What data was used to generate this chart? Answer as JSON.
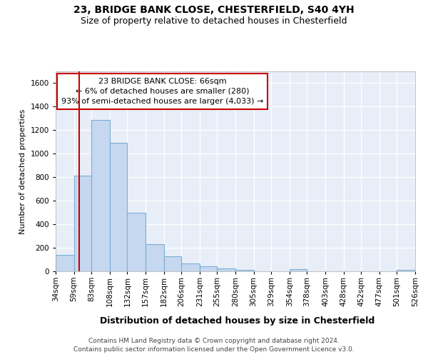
{
  "title": "23, BRIDGE BANK CLOSE, CHESTERFIELD, S40 4YH",
  "subtitle": "Size of property relative to detached houses in Chesterfield",
  "xlabel": "Distribution of detached houses by size in Chesterfield",
  "ylabel": "Number of detached properties",
  "footnote1": "Contains HM Land Registry data © Crown copyright and database right 2024.",
  "footnote2": "Contains public sector information licensed under the Open Government Licence v3.0.",
  "annotation_line1": "23 BRIDGE BANK CLOSE: 66sqm",
  "annotation_line2": "← 6% of detached houses are smaller (280)",
  "annotation_line3": "93% of semi-detached houses are larger (4,033) →",
  "bar_color": "#c5d8ef",
  "bar_edge_color": "#7aadd4",
  "vline_color": "#cc0000",
  "vline_x": 66,
  "ylim": [
    0,
    1700
  ],
  "yticks": [
    0,
    200,
    400,
    600,
    800,
    1000,
    1200,
    1400,
    1600
  ],
  "bins": [
    34,
    59,
    83,
    108,
    132,
    157,
    182,
    206,
    231,
    255,
    280,
    305,
    329,
    354,
    378,
    403,
    428,
    452,
    477,
    501,
    526
  ],
  "counts": [
    140,
    815,
    1290,
    1090,
    495,
    230,
    130,
    65,
    40,
    27,
    15,
    0,
    0,
    17,
    0,
    0,
    0,
    0,
    0,
    15
  ],
  "background_color": "#e8eef8",
  "grid_color": "#d0d8e8",
  "title_fontsize": 10,
  "subtitle_fontsize": 9,
  "ylabel_fontsize": 8,
  "xlabel_fontsize": 9,
  "footnote_fontsize": 6.5,
  "tick_fontsize": 7.5,
  "annot_fontsize": 8
}
